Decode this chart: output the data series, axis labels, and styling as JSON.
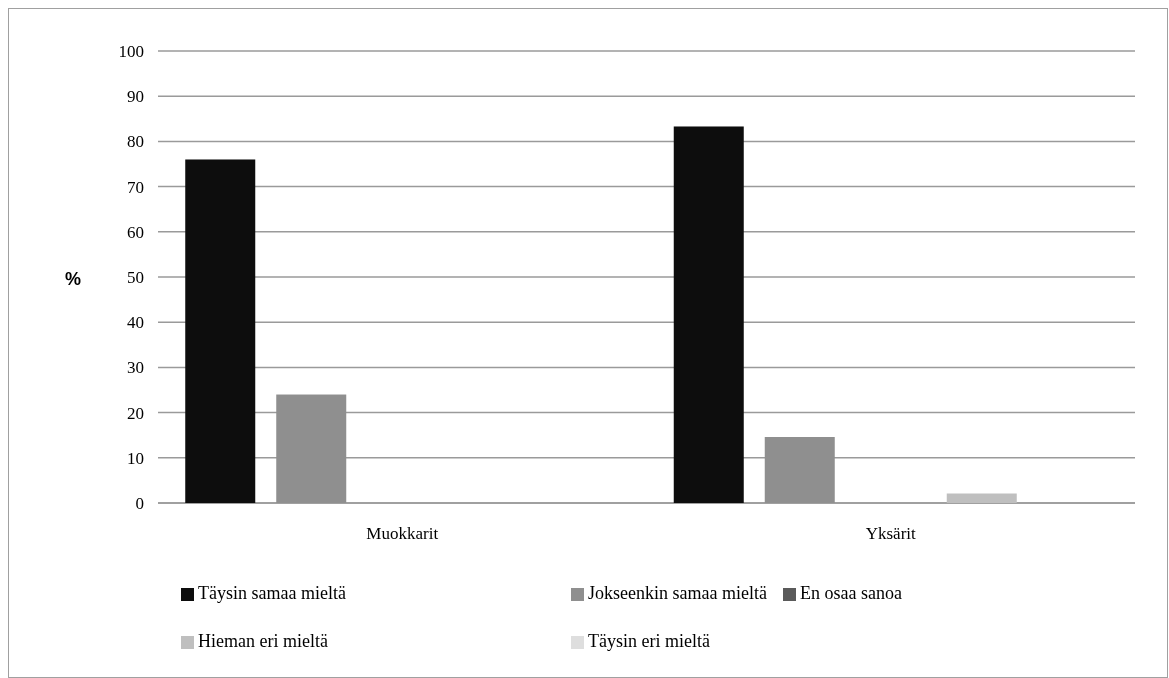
{
  "chart_data": {
    "type": "bar",
    "ylabel": "%",
    "categories": [
      "Muokkarit",
      "Yksärit"
    ],
    "series": [
      {
        "name": "Täysin samaa mieltä",
        "color": "#0d0d0d",
        "values": [
          76,
          83.3
        ]
      },
      {
        "name": "Jokseenkin samaa mieltä",
        "color": "#8f8f8f",
        "values": [
          24,
          14.6
        ]
      },
      {
        "name": "En osaa sanoa",
        "color": "#5a5a5a",
        "values": [
          0,
          0
        ]
      },
      {
        "name": "Hieman eri mieltä",
        "color": "#bfbfbf",
        "values": [
          0,
          2.1
        ]
      },
      {
        "name": "Täysin eri mieltä",
        "color": "#dedede",
        "values": [
          0,
          0
        ]
      }
    ],
    "ylim": [
      0,
      100
    ],
    "yticks": [
      0,
      10,
      20,
      30,
      40,
      50,
      60,
      70,
      80,
      90,
      100
    ],
    "grid": "y",
    "legend": "bottom"
  }
}
